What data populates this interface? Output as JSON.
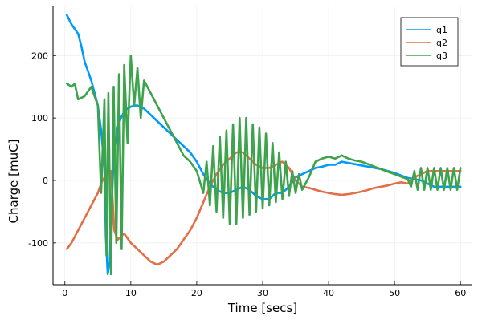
{
  "chart_data": {
    "type": "line",
    "title": "",
    "xlabel": "Time [secs]",
    "ylabel": "Charge [muC]",
    "xlim": [
      -1.8,
      61.8
    ],
    "ylim": [
      -167,
      280
    ],
    "xticks": [
      0,
      10,
      20,
      30,
      40,
      50,
      60
    ],
    "yticks": [
      -100,
      0,
      100,
      200
    ],
    "grid": true,
    "legend": {
      "position": "top-right",
      "entries": [
        "q1",
        "q2",
        "q3"
      ]
    },
    "series": [
      {
        "name": "q1",
        "color": "#009AFA",
        "x": [
          0.3,
          1,
          2,
          2.5,
          3,
          4,
          5,
          5.5,
          6,
          6.2,
          6.5,
          6.8,
          7,
          7.3,
          7.6,
          8,
          8.5,
          9,
          9.5,
          10,
          10.5,
          11,
          12,
          13,
          14,
          15,
          16,
          17,
          18,
          19,
          20,
          21,
          22,
          23,
          24,
          25,
          26,
          27,
          28,
          29,
          30,
          31,
          32,
          33,
          34,
          35,
          36,
          37,
          38,
          39,
          40,
          41,
          42,
          43,
          44,
          45,
          46,
          47,
          48,
          49,
          50,
          51,
          52,
          53,
          54,
          55,
          56,
          57,
          58,
          59,
          60
        ],
        "y": [
          265,
          250,
          235,
          215,
          190,
          160,
          120,
          80,
          20,
          -90,
          -150,
          -130,
          -60,
          10,
          50,
          85,
          100,
          110,
          115,
          118,
          120,
          120,
          115,
          105,
          95,
          85,
          75,
          65,
          55,
          45,
          30,
          10,
          -5,
          -15,
          -20,
          -20,
          -15,
          -10,
          -15,
          -25,
          -30,
          -30,
          -20,
          -20,
          -10,
          5,
          10,
          15,
          20,
          22,
          25,
          25,
          30,
          28,
          26,
          24,
          22,
          20,
          18,
          15,
          12,
          8,
          4,
          2,
          0,
          -5,
          -10,
          -10,
          -10,
          -10,
          -10
        ]
      },
      {
        "name": "q2",
        "color": "#E26F46",
        "x": [
          0.3,
          1,
          2,
          3,
          4,
          5,
          5.5,
          6,
          6.5,
          7,
          7.5,
          8,
          9,
          10,
          11,
          12,
          13,
          14,
          15,
          16,
          17,
          18,
          19,
          20,
          21,
          22,
          23,
          24,
          25,
          26,
          27,
          28,
          29,
          30,
          31,
          32,
          33,
          34,
          35,
          36,
          37,
          38,
          39,
          40,
          41,
          42,
          43,
          44,
          45,
          46,
          47,
          48,
          49,
          50,
          51,
          52,
          53,
          54,
          55,
          56,
          57,
          58,
          59,
          60
        ],
        "y": [
          -110,
          -100,
          -80,
          -60,
          -40,
          -20,
          -5,
          5,
          10,
          15,
          -80,
          -95,
          -85,
          -100,
          -110,
          -120,
          -130,
          -135,
          -130,
          -120,
          -110,
          -95,
          -80,
          -60,
          -35,
          -10,
          10,
          25,
          35,
          45,
          45,
          35,
          25,
          20,
          20,
          25,
          30,
          20,
          0,
          -10,
          -12,
          -15,
          -18,
          -20,
          -22,
          -23,
          -22,
          -20,
          -18,
          -15,
          -12,
          -10,
          -8,
          -5,
          -3,
          -5,
          5,
          10,
          15,
          15,
          15,
          15,
          15,
          15
        ]
      },
      {
        "name": "q3",
        "color": "#3DA44D",
        "x": [
          0.3,
          1,
          1.5,
          2,
          3,
          4,
          5,
          5.5,
          6,
          6.3,
          6.6,
          7,
          7.4,
          7.8,
          8.2,
          8.6,
          9,
          9.5,
          10,
          10.5,
          11,
          11.5,
          12,
          13,
          14,
          15,
          16,
          17,
          18,
          19,
          20,
          21,
          21.5,
          22,
          22.5,
          23,
          23.5,
          24,
          24.5,
          25,
          25.5,
          26,
          26.5,
          27,
          27.5,
          28,
          28.5,
          29,
          29.5,
          30,
          30.5,
          31,
          31.5,
          32,
          32.5,
          33,
          33.5,
          34,
          34.5,
          35,
          35.5,
          36,
          36.5,
          37,
          38,
          39,
          40,
          41,
          42,
          43,
          44,
          45,
          46,
          47,
          48,
          49,
          50,
          51,
          52,
          52.5,
          53,
          53.5,
          54,
          54.5,
          55,
          55.5,
          56,
          56.5,
          57,
          57.5,
          58,
          58.5,
          59,
          59.5,
          60
        ],
        "y": [
          155,
          150,
          155,
          130,
          135,
          150,
          120,
          -20,
          130,
          -120,
          140,
          -150,
          150,
          -100,
          170,
          -110,
          185,
          60,
          200,
          120,
          180,
          100,
          160,
          140,
          120,
          100,
          80,
          60,
          40,
          30,
          15,
          -20,
          30,
          -40,
          55,
          -50,
          70,
          -60,
          80,
          -70,
          90,
          -70,
          100,
          -60,
          100,
          -55,
          90,
          -50,
          85,
          -45,
          75,
          -40,
          60,
          -35,
          45,
          -30,
          30,
          -25,
          15,
          -20,
          10,
          -15,
          -5,
          5,
          30,
          35,
          38,
          35,
          40,
          35,
          32,
          30,
          26,
          22,
          18,
          14,
          10,
          6,
          2,
          -10,
          15,
          -15,
          20,
          -15,
          20,
          -15,
          20,
          -15,
          20,
          -15,
          20,
          -15,
          20,
          -15,
          20
        ]
      }
    ]
  }
}
